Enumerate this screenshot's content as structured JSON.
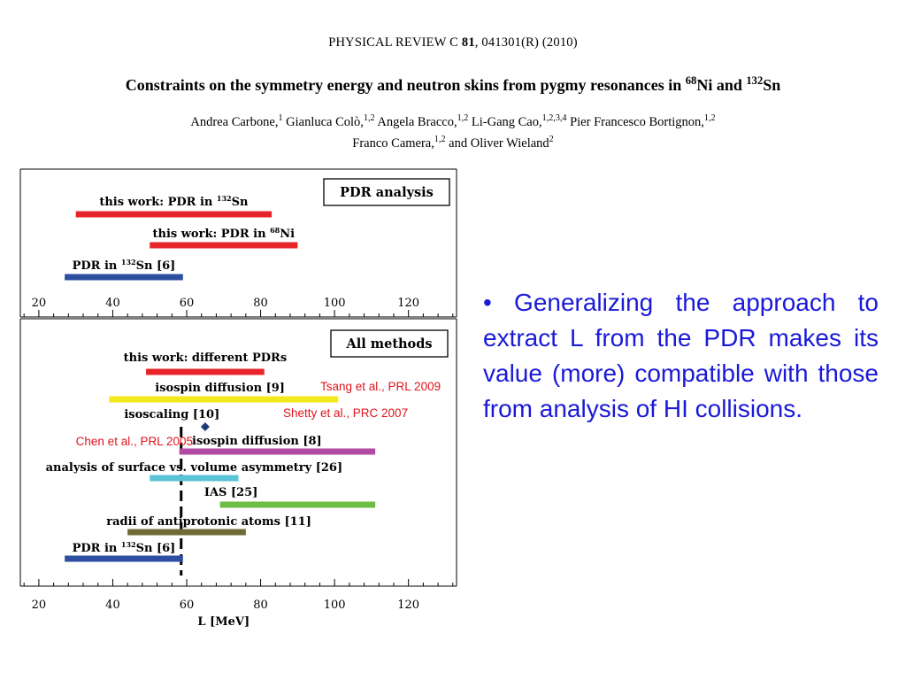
{
  "header": {
    "journal": "PHYSICAL REVIEW C 81, 041301(R) (2010)",
    "title": "Constraints on the symmetry energy and neutron skins from pygmy resonances in 68Ni and 132Sn",
    "authors_line1": "Andrea Carbone,1 Gianluca Colò,1,2 Angela Bracco,1,2 Li-Gang Cao,1,2,3,4 Pier Francesco Bortignon,1,2",
    "authors_line2": "Franco Camera,1,2 and Oliver Wieland2"
  },
  "colors": {
    "red": "#e8242b",
    "blue": "#2e4ea0",
    "yellow": "#f2e91a",
    "magenta": "#b24ba3",
    "cyan": "#5ac4d6",
    "green": "#6cbd45",
    "olive": "#6e6b36",
    "diamond": "#1f3a78",
    "annotation": "#e0141c",
    "bullet_text": "#1a1ad8"
  },
  "chart_data": [
    {
      "type": "bar",
      "orientation": "horizontal-range",
      "panel_label": "PDR analysis",
      "xlim": [
        15,
        133
      ],
      "xticks": [
        20,
        40,
        60,
        80,
        100,
        120
      ],
      "series": [
        {
          "label": "this work: PDR in 132Sn",
          "range": [
            30,
            83
          ],
          "color": "red"
        },
        {
          "label": "this work: PDR in 68Ni",
          "range": [
            50,
            90
          ],
          "color": "red"
        },
        {
          "label": "PDR in 132Sn [6]",
          "range": [
            27,
            59
          ],
          "color": "blue"
        }
      ]
    },
    {
      "type": "bar",
      "orientation": "horizontal-range",
      "panel_label": "All methods",
      "xlabel": "L    [MeV]",
      "xlim": [
        15,
        133
      ],
      "xticks": [
        20,
        40,
        60,
        80,
        100,
        120
      ],
      "reference_line_x": 58.5,
      "series": [
        {
          "label": "this work: different PDRs",
          "range": [
            49,
            81
          ],
          "color": "red"
        },
        {
          "label": "isospin diffusion [9]",
          "range": [
            39,
            101
          ],
          "color": "yellow",
          "annotation": "Tsang et al., PRL 2009"
        },
        {
          "label": "isoscaling [10]",
          "point": 65,
          "color": "diamond",
          "annotation": "Shetty et al., PRC 2007"
        },
        {
          "label": "isospin diffusion [8]",
          "range": [
            58,
            111
          ],
          "color": "magenta",
          "annotation": "Chen  et al., PRL 2005"
        },
        {
          "label": "analysis of surface vs. volume asymmetry [26]",
          "range": [
            50,
            74
          ],
          "color": "cyan"
        },
        {
          "label": "IAS [25]",
          "range": [
            69,
            111
          ],
          "color": "green"
        },
        {
          "label": "radii of antiprotonic atoms [11]",
          "range": [
            44,
            76
          ],
          "color": "olive"
        },
        {
          "label": "PDR in 132Sn [6]",
          "range": [
            27,
            59
          ],
          "color": "blue"
        }
      ]
    }
  ],
  "bullet": "• Generalizing the  approach to extract L from the PDR makes its value (more) compatible with those from analysis of HI collisions."
}
